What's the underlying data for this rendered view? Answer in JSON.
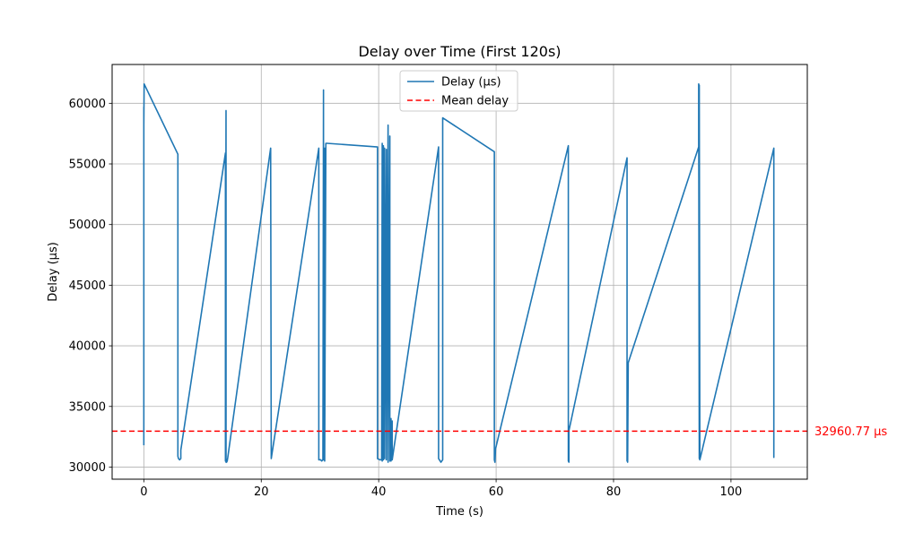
{
  "chart_data": {
    "type": "line",
    "title": "Delay over Time (First 120s)",
    "xlabel": "Time (s)",
    "ylabel": "Delay (µs)",
    "xlim": [
      -5.4,
      113
    ],
    "ylim": [
      29000,
      63200
    ],
    "xticks": [
      0,
      20,
      40,
      60,
      80,
      100
    ],
    "yticks": [
      30000,
      35000,
      40000,
      45000,
      50000,
      55000,
      60000
    ],
    "grid": true,
    "legend_position": "top-center",
    "legend": [
      {
        "label": "Delay (µs)",
        "style": "solid",
        "color": "#1f77b4"
      },
      {
        "label": "Mean delay",
        "style": "dashed",
        "color": "#ff0000"
      }
    ],
    "series": [
      {
        "name": "Delay (µs)",
        "color": "#1f77b4",
        "x": [
          0,
          0,
          0,
          0,
          0.05,
          0.05,
          5.8,
          5.8,
          5.9,
          6.1,
          6.3,
          6.3,
          13.9,
          13.9,
          14,
          14,
          14.05,
          14.1,
          14.2,
          14.3,
          21.6,
          21.7,
          21.7,
          29.8,
          29.8,
          30.1,
          30.3,
          30.5,
          30.6,
          30.6,
          30.8,
          30.8,
          31.0,
          31.0,
          31.2,
          39.8,
          39.8,
          40.2,
          40.5,
          40.6,
          40.6,
          40.8,
          40.8,
          41.0,
          41.0,
          41.3,
          41.3,
          41.6,
          41.6,
          41.9,
          41.9,
          42.1,
          42.1,
          42.3,
          42.3,
          50.2,
          50.2,
          50.6,
          50.9,
          50.9,
          59.7,
          59.7,
          59.8,
          59.9,
          72.3,
          72.3,
          72.4,
          72.4,
          82.3,
          82.3,
          82.4,
          82.4,
          82.5,
          94.5,
          94.5,
          94.6,
          94.6,
          94.7,
          107.3,
          107.3,
          107.4
        ],
        "y": [
          31800,
          59700,
          35000,
          58200,
          61600,
          61600,
          55800,
          30900,
          30700,
          30600,
          30700,
          31400,
          55900,
          30500,
          59400,
          30400,
          30600,
          30400,
          30500,
          30800,
          56300,
          30700,
          30700,
          56300,
          30600,
          30600,
          30500,
          30600,
          61100,
          30600,
          56300,
          30500,
          56700,
          56700,
          56700,
          56400,
          30700,
          30600,
          30600,
          56700,
          30500,
          56500,
          30600,
          56300,
          30700,
          56200,
          30600,
          58200,
          30400,
          57300,
          30500,
          34000,
          30500,
          33800,
          30600,
          56400,
          30700,
          30400,
          30600,
          58800,
          56000,
          30600,
          30400,
          31500,
          56500,
          30500,
          30400,
          33000,
          55500,
          30500,
          38600,
          30400,
          38600,
          56400,
          61600,
          30700,
          61500,
          30600,
          56300,
          30800,
          30800
        ]
      }
    ],
    "mean_line": {
      "name": "Mean delay",
      "value": 32960.77,
      "label": "32960.77 µs",
      "color": "#ff0000"
    }
  }
}
